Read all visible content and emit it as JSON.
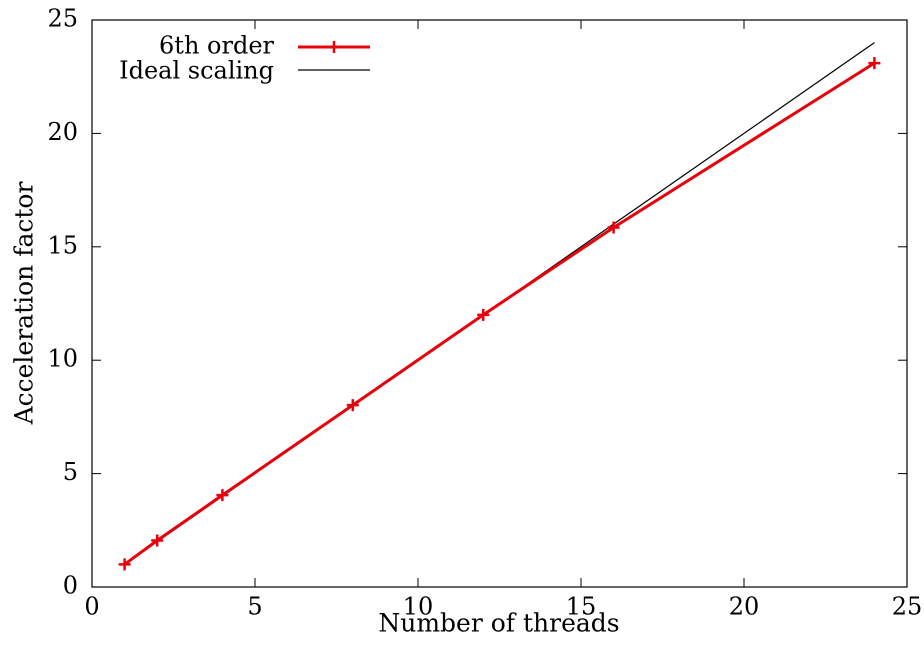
{
  "chart_data": {
    "type": "line",
    "title": "",
    "xlabel": "Number of threads",
    "ylabel": "Acceleration factor",
    "xlim": [
      0,
      25
    ],
    "ylim": [
      0,
      25
    ],
    "xticks": [
      "0",
      "5",
      "10",
      "15",
      "20",
      "25"
    ],
    "yticks": [
      "0",
      "5",
      "10",
      "15",
      "20",
      "25"
    ],
    "grid": false,
    "legend_position": "top-left",
    "series": [
      {
        "name": "6th order",
        "color": "#e8000b",
        "marker": "plus",
        "x": [
          1,
          2,
          4,
          8,
          12,
          16,
          24
        ],
        "y": [
          1.0,
          2.05,
          4.05,
          8.02,
          12.0,
          15.85,
          23.1
        ]
      },
      {
        "name": "Ideal scaling",
        "color": "#000000",
        "marker": "none",
        "x": [
          1,
          24
        ],
        "y": [
          1,
          24
        ]
      }
    ]
  }
}
